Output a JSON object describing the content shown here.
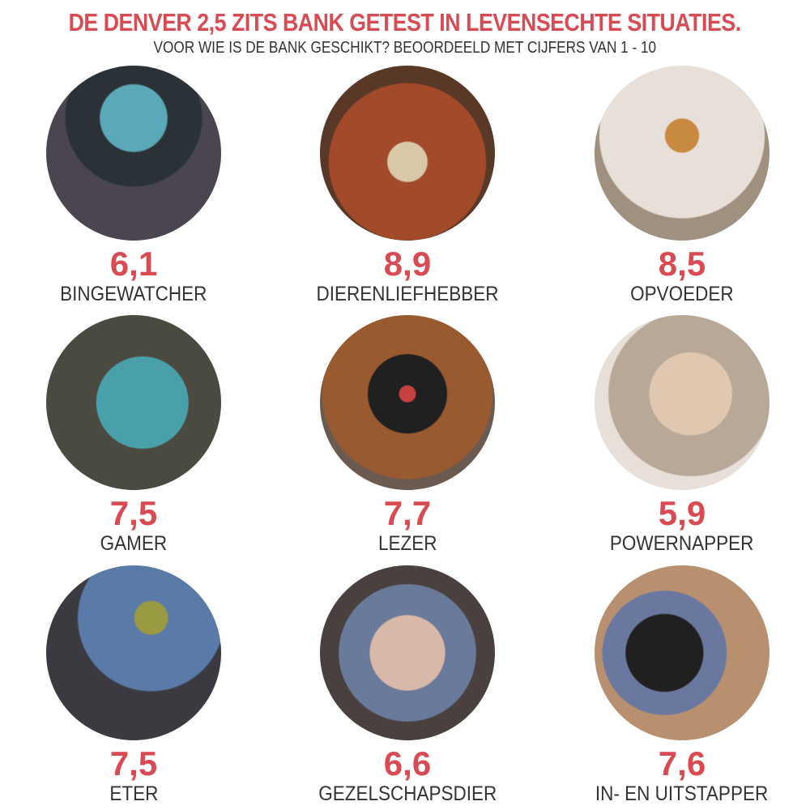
{
  "header": {
    "title": "DE DENVER 2,5 ZITS BANK GETEST IN LEVENSECHTE SITUATIES.",
    "subtitle": "VOOR WIE IS DE BANK GESCHIKT? BEOORDEELD MET CIJFERS VAN 1 - 10"
  },
  "accent_color": "#d94a52",
  "items": [
    {
      "score": "6,1",
      "label": "BINGEWATCHER",
      "photo": "couple-watching-tv"
    },
    {
      "score": "8,9",
      "label": "DIERENLIEFHEBBER",
      "photo": "woman-with-dog-on-sofa"
    },
    {
      "score": "8,5",
      "label": "OPVOEDER",
      "photo": "children-jumping-on-sofa"
    },
    {
      "score": "7,5",
      "label": "GAMER",
      "photo": "man-gaming-with-headset"
    },
    {
      "score": "7,7",
      "label": "LEZER",
      "photo": "man-reading-book"
    },
    {
      "score": "5,9",
      "label": "POWERNAPPER",
      "photo": "woman-napping"
    },
    {
      "score": "7,5",
      "label": "ETER",
      "photo": "man-eating-bowl"
    },
    {
      "score": "6,6",
      "label": "GEZELSCHAPSDIER",
      "photo": "friends-talking-on-sofa"
    },
    {
      "score": "7,6",
      "label": "IN- EN UITSTAPPER",
      "photo": "man-getting-up-from-sofa"
    }
  ]
}
